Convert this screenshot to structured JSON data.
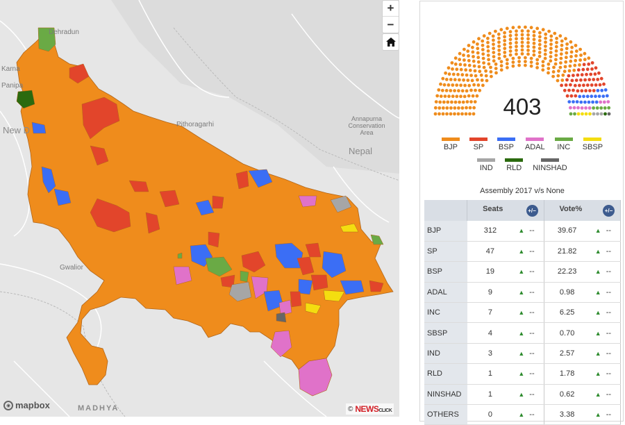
{
  "map": {
    "places": [
      {
        "name": "Dehradun",
        "id": "dehradun"
      },
      {
        "name": "Karna",
        "id": "karnal"
      },
      {
        "name": "Panipa",
        "id": "panipat"
      },
      {
        "name": "New D",
        "id": "new-delhi"
      },
      {
        "name": "Pithoragarhi",
        "id": "pithoragarh"
      },
      {
        "name": "Annapurna Conservation Area",
        "id": "annapurna"
      },
      {
        "name": "Nepal",
        "id": "nepal"
      },
      {
        "name": "Gwalior",
        "id": "gwalior"
      },
      {
        "name": "MADHYA",
        "id": "madhya"
      }
    ],
    "zoom_in_label": "+",
    "zoom_out_label": "−",
    "home_icon": "home-icon",
    "attribution_logo": "mapbox",
    "credit_copy": "©",
    "credit_brand": "NEWS",
    "credit_brand_small": "CLICK"
  },
  "colors": {
    "BJP": "#ef8c1c",
    "SP": "#e2452b",
    "BSP": "#3b6ef5",
    "ADAL": "#e072c9",
    "INC": "#6aaa45",
    "SBSP": "#f4dd10",
    "IND": "#a6a6a6",
    "RLD": "#2b6a0f",
    "NINSHAD": "#666666"
  },
  "hemicycle": {
    "total_label": "403"
  },
  "legend": [
    {
      "party": "BJP",
      "color": "#ef8c1c"
    },
    {
      "party": "SP",
      "color": "#e2452b"
    },
    {
      "party": "BSP",
      "color": "#3b6ef5"
    },
    {
      "party": "ADAL",
      "color": "#e072c9"
    },
    {
      "party": "INC",
      "color": "#6aaa45"
    },
    {
      "party": "SBSP",
      "color": "#f4dd10"
    },
    {
      "party": "IND",
      "color": "#a6a6a6"
    },
    {
      "party": "RLD",
      "color": "#2b6a0f"
    },
    {
      "party": "NINSHAD",
      "color": "#666666"
    }
  ],
  "comparison_label": "Assembly 2017 v/s None",
  "table": {
    "headers": {
      "seats": "Seats",
      "vote": "Vote%",
      "toggle": "+/−"
    },
    "arrow": "▲",
    "dash": "--",
    "rows": [
      {
        "party": "BJP",
        "seats": "312",
        "vote": "39.67"
      },
      {
        "party": "SP",
        "seats": "47",
        "vote": "21.82"
      },
      {
        "party": "BSP",
        "seats": "19",
        "vote": "22.23"
      },
      {
        "party": "ADAL",
        "seats": "9",
        "vote": "0.98"
      },
      {
        "party": "INC",
        "seats": "7",
        "vote": "6.25"
      },
      {
        "party": "SBSP",
        "seats": "4",
        "vote": "0.70"
      },
      {
        "party": "IND",
        "seats": "3",
        "vote": "2.57"
      },
      {
        "party": "RLD",
        "seats": "1",
        "vote": "1.78"
      },
      {
        "party": "NINSHAD",
        "seats": "1",
        "vote": "0.62"
      },
      {
        "party": "OTHERS",
        "seats": "0",
        "vote": "3.38"
      }
    ]
  }
}
